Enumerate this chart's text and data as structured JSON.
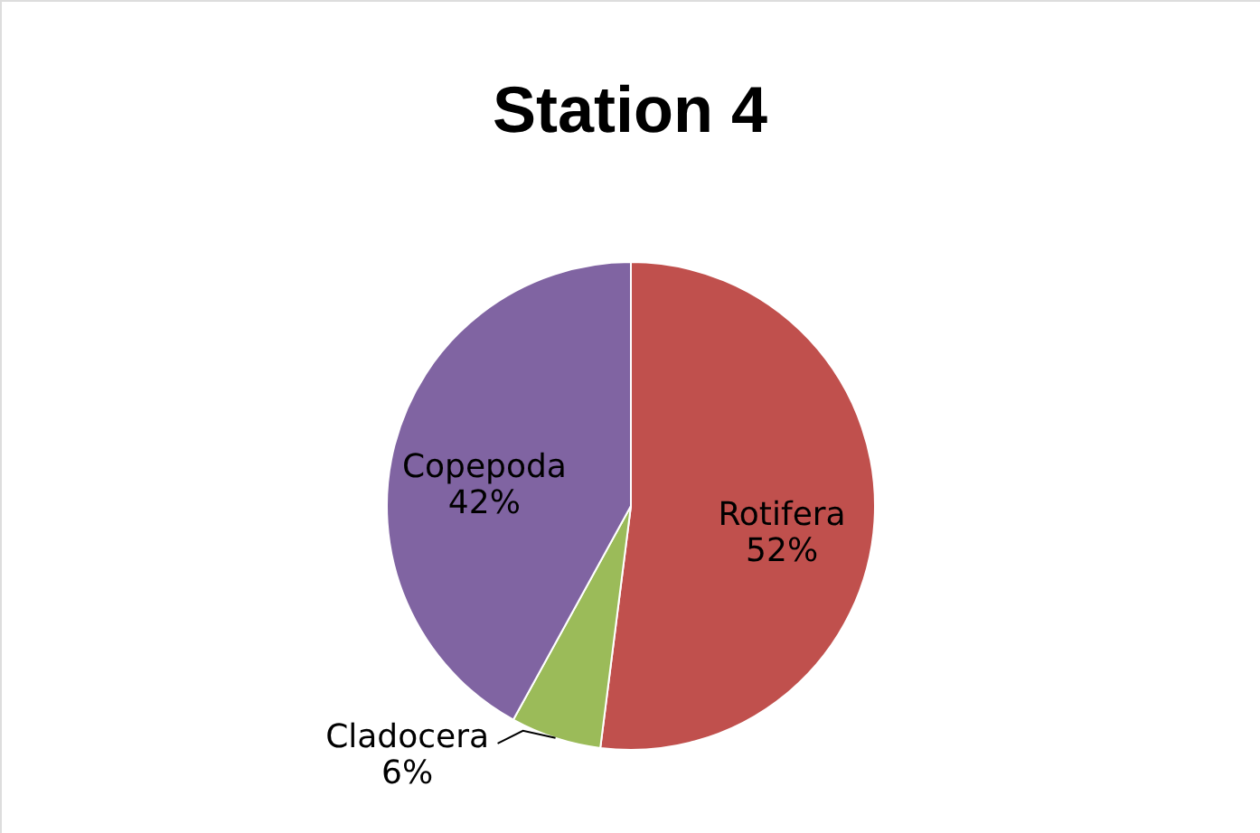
{
  "chart_data": {
    "type": "pie",
    "title": "Station 4",
    "categories": [
      "Rotifera",
      "Cladocera",
      "Copepoda"
    ],
    "values": [
      52,
      6,
      42
    ],
    "value_labels": [
      "52%",
      "6%",
      "42%"
    ],
    "colors": [
      "#c0504d",
      "#9bbb59",
      "#8064a2"
    ]
  }
}
